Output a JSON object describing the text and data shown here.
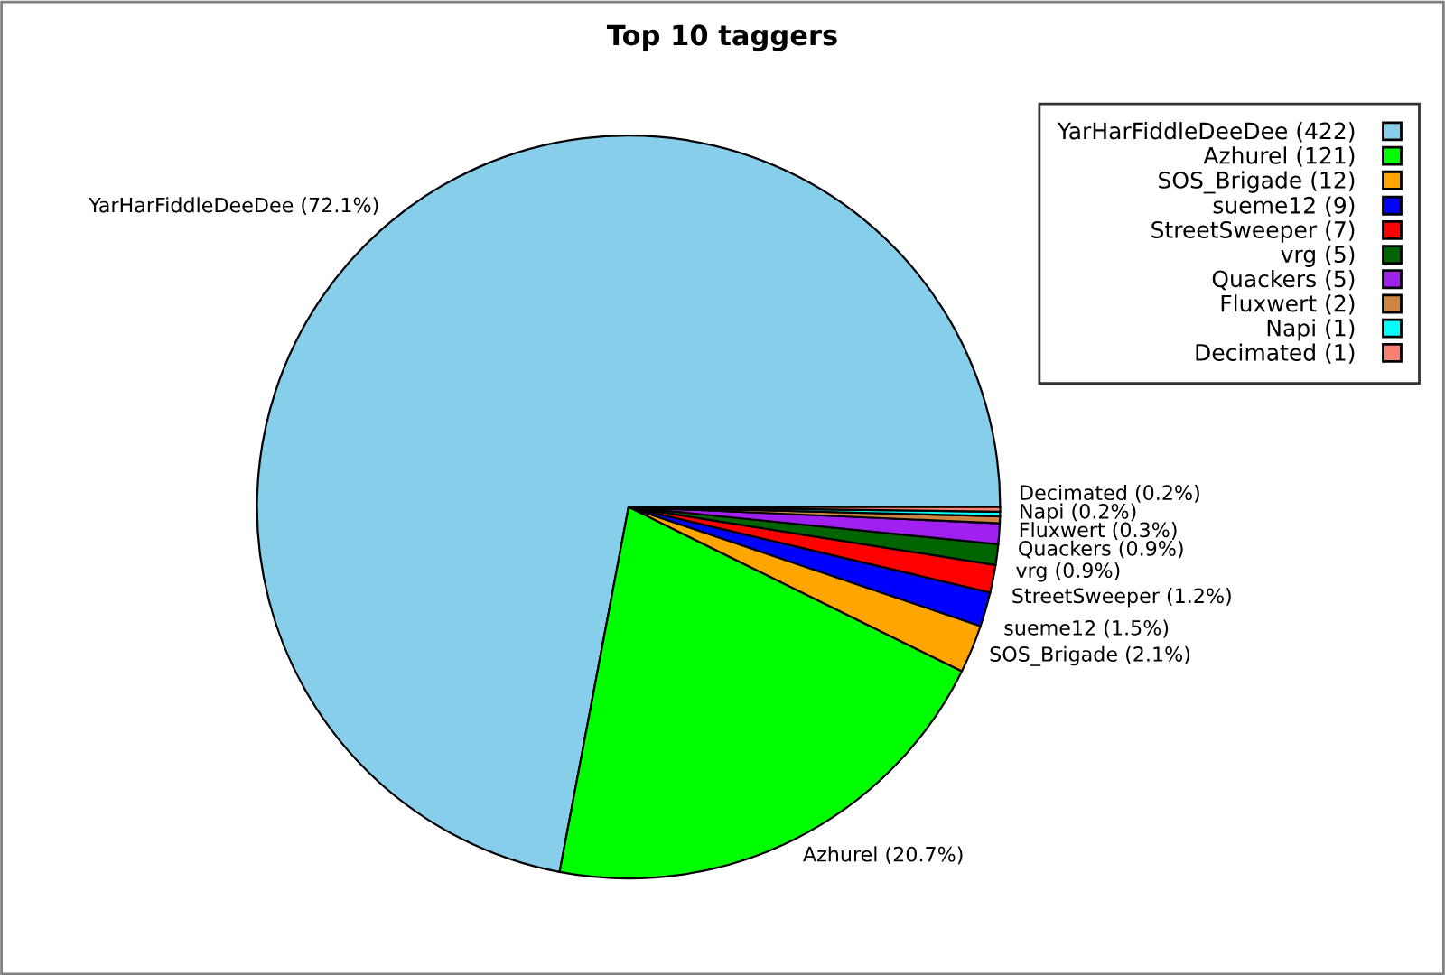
{
  "chart_data": {
    "type": "pie",
    "title": "Top 10 taggers",
    "categories": [
      "YarHarFiddleDeeDee (422)",
      "Azhurel (121)",
      "SOS_Brigade (12)",
      "sueme12 (9)",
      "StreetSweeper (7)",
      "vrg (5)",
      "Quackers (5)",
      "Fluxwert (2)",
      "Napi (1)",
      "Decimated (1)"
    ],
    "values": [
      72.1,
      20.7,
      2.1,
      1.5,
      1.2,
      0.9,
      0.9,
      0.3,
      0.2,
      0.2
    ],
    "value_labels": [
      "YarHarFiddleDeeDee (72.1%)",
      "Azhurel (20.7%)",
      "SOS_Brigade (2.1%)",
      "sueme12 (1.5%)",
      "StreetSweeper (1.2%)",
      "vrg (0.9%)",
      "Quackers (0.9%)",
      "Fluxwert (0.3%)",
      "Napi (0.2%)",
      "Decimated (0.2%)"
    ],
    "colors": [
      "#87ceeb",
      "#00ff00",
      "#ffa500",
      "#0000ff",
      "#ff0000",
      "#006400",
      "#a020f0",
      "#cd853f",
      "#00ffff",
      "#fa8072"
    ],
    "legend": "top right"
  }
}
